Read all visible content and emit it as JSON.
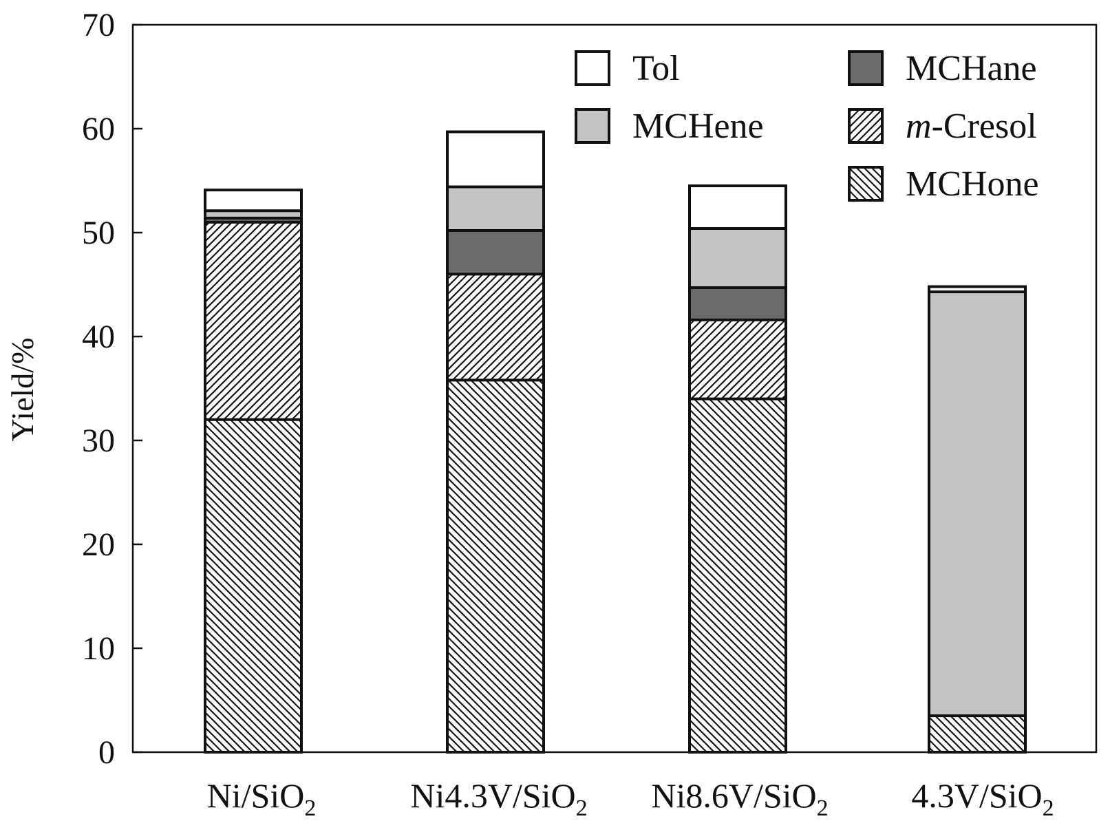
{
  "chart_data": {
    "type": "bar",
    "stacked": true,
    "title": "",
    "xlabel": "",
    "ylabel": "Yield/%",
    "ylim": [
      0,
      70
    ],
    "yticks": [
      0,
      10,
      20,
      30,
      40,
      50,
      60,
      70
    ],
    "categories": [
      {
        "main": "Ni/SiO",
        "sub": "2"
      },
      {
        "main": "Ni4.3V/SiO",
        "sub": "2"
      },
      {
        "main": "Ni8.6V/SiO",
        "sub": "2"
      },
      {
        "main": "4.3V/SiO",
        "sub": "2"
      }
    ],
    "series": [
      {
        "name": "MCHone",
        "pattern": "backslash-hatch",
        "color": "#ffffff",
        "values": [
          32.0,
          35.8,
          34.0,
          3.5
        ]
      },
      {
        "name": "m-Cresol",
        "prefix": "m",
        "suffix": "-Cresol",
        "pattern": "slash-hatch",
        "color": "#ffffff",
        "values": [
          19.0,
          10.2,
          7.6,
          0.0
        ]
      },
      {
        "name": "MCHane",
        "pattern": "solid",
        "color": "#6b6b6b",
        "values": [
          0.4,
          4.2,
          3.1,
          0.0
        ]
      },
      {
        "name": "MCHene",
        "pattern": "solid",
        "color": "#c4c4c4",
        "values": [
          0.7,
          4.2,
          5.7,
          40.8
        ]
      },
      {
        "name": "Tol",
        "pattern": "solid",
        "color": "#ffffff",
        "values": [
          2.0,
          5.3,
          4.1,
          0.5
        ]
      }
    ],
    "legend": {
      "placement": "top-right",
      "order": [
        "Tol",
        "MCHane",
        "MCHene",
        "m-Cresol",
        "MCHone"
      ]
    },
    "grid": false
  }
}
